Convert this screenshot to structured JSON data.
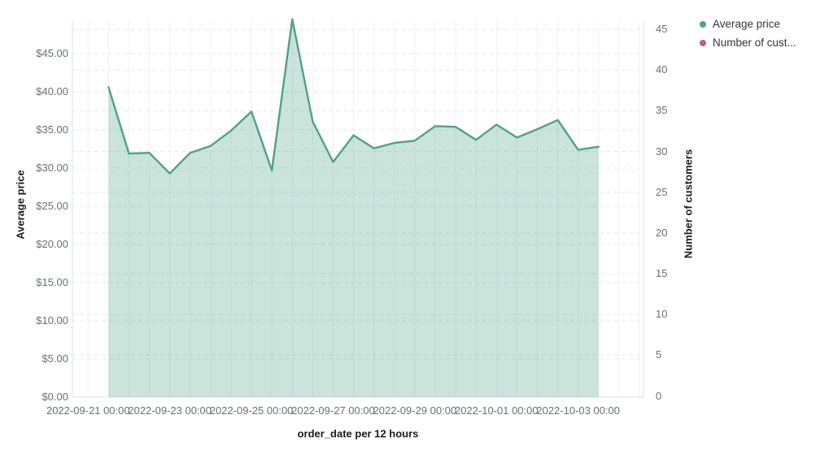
{
  "chart_data": {
    "type": "area",
    "title": "",
    "xlabel": "order_date per 12 hours",
    "ylabel_left": "Average price",
    "ylabel_right": "Number of customers",
    "legend_position": "top-right",
    "grid": true,
    "x": [
      "2022-09-21 12:00",
      "2022-09-22 00:00",
      "2022-09-22 12:00",
      "2022-09-23 00:00",
      "2022-09-23 12:00",
      "2022-09-24 00:00",
      "2022-09-24 12:00",
      "2022-09-25 00:00",
      "2022-09-25 12:00",
      "2022-09-26 00:00",
      "2022-09-26 12:00",
      "2022-09-27 00:00",
      "2022-09-27 12:00",
      "2022-09-28 00:00",
      "2022-09-28 12:00",
      "2022-09-29 00:00",
      "2022-09-29 12:00",
      "2022-09-30 00:00",
      "2022-09-30 12:00",
      "2022-10-01 00:00",
      "2022-10-01 12:00",
      "2022-10-02 00:00",
      "2022-10-02 12:00",
      "2022-10-03 00:00",
      "2022-10-03 12:00"
    ],
    "series": [
      {
        "name": "Average price",
        "legend_label": "Average price",
        "axis": "left",
        "color": "#4FA287",
        "fill_opacity": 0.3,
        "values": [
          40.6,
          31.9,
          32.0,
          29.3,
          32.0,
          32.9,
          34.9,
          37.4,
          29.7,
          49.5,
          36.1,
          30.8,
          34.3,
          32.6,
          33.3,
          33.6,
          35.5,
          35.4,
          33.7,
          35.7,
          34.0,
          35.1,
          36.3,
          32.4,
          32.8
        ]
      },
      {
        "name": "Number of customers",
        "legend_label": "Number of cust...",
        "axis": "right",
        "color": "#C65D7D",
        "values": []
      }
    ],
    "x_axis": {
      "tick_labels": [
        "2022-09-21 00:00",
        "2022-09-23 00:00",
        "2022-09-25 00:00",
        "2022-09-27 00:00",
        "2022-09-29 00:00",
        "2022-10-01 00:00",
        "2022-10-03 00:00"
      ]
    },
    "y_axis_left": {
      "tick_labels": [
        "$0.00",
        "$5.00",
        "$10.00",
        "$15.00",
        "$20.00",
        "$25.00",
        "$30.00",
        "$35.00",
        "$40.00",
        "$45.00"
      ],
      "tick_values": [
        0,
        5,
        10,
        15,
        20,
        25,
        30,
        35,
        40,
        45
      ],
      "range": [
        0,
        49.4
      ]
    },
    "y_axis_right": {
      "tick_labels": [
        "0",
        "5",
        "10",
        "15",
        "20",
        "25",
        "30",
        "35",
        "40",
        "45"
      ],
      "tick_values": [
        0,
        5,
        10,
        15,
        20,
        25,
        30,
        35,
        40,
        45
      ],
      "range": [
        0,
        46
      ]
    }
  },
  "colors": {
    "tick_label": "#69707D",
    "axis_title": "#1A1C21",
    "legend_text": "#343741",
    "grid_vertical": "#EEF1F5",
    "grid_dashed": "#E4E8EE",
    "axis_line": "#DDE3EA",
    "background": "#FFFFFF"
  }
}
